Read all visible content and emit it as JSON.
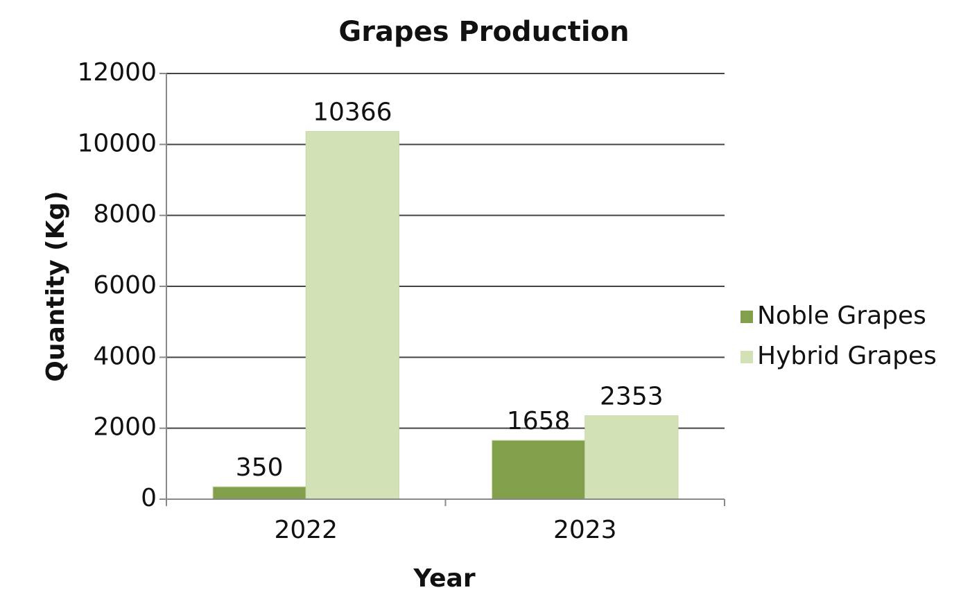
{
  "chart_data": {
    "type": "bar",
    "title": "Grapes Production",
    "x_label": "Year",
    "y_label": "Quantity (Kg)",
    "categories": [
      "2022",
      "2023"
    ],
    "series": [
      {
        "name": "Noble Grapes",
        "color": "#82a04c",
        "values": [
          350,
          1658
        ]
      },
      {
        "name": "Hybrid Grapes",
        "color": "#d3e2b6",
        "values": [
          10366,
          2353
        ]
      }
    ],
    "ylim": [
      0,
      12000
    ],
    "yticks": [
      0,
      2000,
      4000,
      6000,
      8000,
      10000,
      12000
    ],
    "grid": true,
    "legend": "right"
  }
}
